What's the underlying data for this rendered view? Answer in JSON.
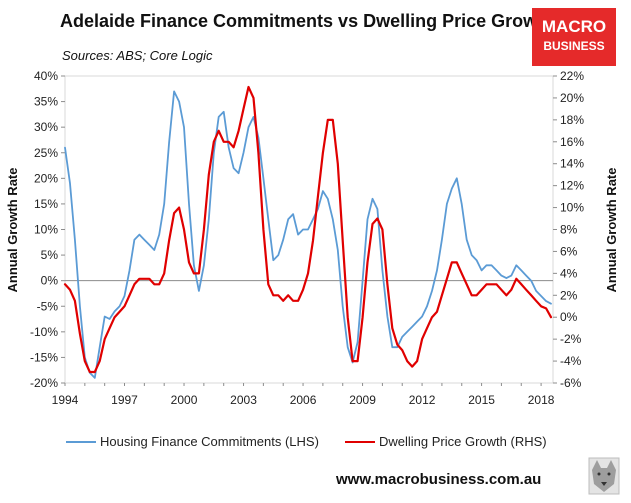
{
  "chart_data": {
    "type": "line",
    "title": "Adelaide Finance Commitments vs Dwelling Price Growth",
    "subtitle": "Sources: ABS; Core Logic",
    "ylabel_left": "Annual Growth Rate",
    "ylabel_right": "Annual Growth Rate",
    "xlim": [
      1994,
      2018.6
    ],
    "ylim_left": [
      -20,
      40
    ],
    "ylim_right": [
      -6,
      22
    ],
    "x_ticks": [
      "1994",
      "1997",
      "2000",
      "2003",
      "2006",
      "2009",
      "2012",
      "2015",
      "2018"
    ],
    "y_left_ticks": [
      "-20%",
      "-15%",
      "-10%",
      "-5%",
      "0%",
      "5%",
      "10%",
      "15%",
      "20%",
      "25%",
      "30%",
      "35%",
      "40%"
    ],
    "y_right_ticks": [
      "-6%",
      "-4%",
      "-2%",
      "0%",
      "2%",
      "4%",
      "6%",
      "8%",
      "10%",
      "12%",
      "14%",
      "16%",
      "18%",
      "20%",
      "22%"
    ],
    "series": [
      {
        "name": "Housing Finance Commitments (LHS)",
        "axis": "left",
        "color": "#5b9bd5",
        "points": [
          [
            1994.0,
            26
          ],
          [
            1994.25,
            19
          ],
          [
            1994.5,
            8
          ],
          [
            1994.75,
            -5
          ],
          [
            1995.0,
            -15
          ],
          [
            1995.25,
            -18
          ],
          [
            1995.5,
            -19
          ],
          [
            1995.75,
            -13
          ],
          [
            1996.0,
            -7
          ],
          [
            1996.25,
            -7.5
          ],
          [
            1996.5,
            -6
          ],
          [
            1996.75,
            -5
          ],
          [
            1997.0,
            -3
          ],
          [
            1997.25,
            2
          ],
          [
            1997.5,
            8
          ],
          [
            1997.75,
            9
          ],
          [
            1998.0,
            8
          ],
          [
            1998.25,
            7
          ],
          [
            1998.5,
            6
          ],
          [
            1998.75,
            9
          ],
          [
            1999.0,
            15
          ],
          [
            1999.25,
            27
          ],
          [
            1999.5,
            37
          ],
          [
            1999.75,
            35
          ],
          [
            2000.0,
            30
          ],
          [
            2000.25,
            15
          ],
          [
            2000.5,
            3
          ],
          [
            2000.75,
            -2
          ],
          [
            2001.0,
            3
          ],
          [
            2001.25,
            12
          ],
          [
            2001.5,
            25
          ],
          [
            2001.75,
            32
          ],
          [
            2002.0,
            33
          ],
          [
            2002.25,
            26
          ],
          [
            2002.5,
            22
          ],
          [
            2002.75,
            21
          ],
          [
            2003.0,
            25
          ],
          [
            2003.25,
            30
          ],
          [
            2003.5,
            32
          ],
          [
            2003.75,
            28
          ],
          [
            2004.0,
            20
          ],
          [
            2004.25,
            12
          ],
          [
            2004.5,
            4
          ],
          [
            2004.75,
            5
          ],
          [
            2005.0,
            8
          ],
          [
            2005.25,
            12
          ],
          [
            2005.5,
            13
          ],
          [
            2005.75,
            9
          ],
          [
            2006.0,
            10
          ],
          [
            2006.25,
            10
          ],
          [
            2006.5,
            12
          ],
          [
            2006.75,
            14
          ],
          [
            2007.0,
            17.5
          ],
          [
            2007.25,
            16
          ],
          [
            2007.5,
            12
          ],
          [
            2007.75,
            6
          ],
          [
            2008.0,
            -5
          ],
          [
            2008.25,
            -13
          ],
          [
            2008.5,
            -16
          ],
          [
            2008.75,
            -12
          ],
          [
            2009.0,
            0
          ],
          [
            2009.25,
            12
          ],
          [
            2009.5,
            16
          ],
          [
            2009.75,
            14
          ],
          [
            2010.0,
            2
          ],
          [
            2010.25,
            -7
          ],
          [
            2010.5,
            -13
          ],
          [
            2010.75,
            -13
          ],
          [
            2011.0,
            -11
          ],
          [
            2011.25,
            -10
          ],
          [
            2011.5,
            -9
          ],
          [
            2011.75,
            -8
          ],
          [
            2012.0,
            -7
          ],
          [
            2012.25,
            -5
          ],
          [
            2012.5,
            -2
          ],
          [
            2012.75,
            2
          ],
          [
            2013.0,
            8
          ],
          [
            2013.25,
            15
          ],
          [
            2013.5,
            18
          ],
          [
            2013.75,
            20
          ],
          [
            2014.0,
            15
          ],
          [
            2014.25,
            8
          ],
          [
            2014.5,
            5
          ],
          [
            2014.75,
            4
          ],
          [
            2015.0,
            2
          ],
          [
            2015.25,
            3
          ],
          [
            2015.5,
            3
          ],
          [
            2015.75,
            2
          ],
          [
            2016.0,
            1
          ],
          [
            2016.25,
            0.5
          ],
          [
            2016.5,
            1
          ],
          [
            2016.75,
            3
          ],
          [
            2017.0,
            2
          ],
          [
            2017.25,
            1
          ],
          [
            2017.5,
            0
          ],
          [
            2017.75,
            -2
          ],
          [
            2018.0,
            -3
          ],
          [
            2018.25,
            -4
          ],
          [
            2018.5,
            -4.5
          ]
        ]
      },
      {
        "name": "Dwelling Price Growth (RHS)",
        "axis": "right",
        "color": "#e00000",
        "points": [
          [
            1994.0,
            3
          ],
          [
            1994.25,
            2.5
          ],
          [
            1994.5,
            1.5
          ],
          [
            1994.75,
            -1.5
          ],
          [
            1995.0,
            -4
          ],
          [
            1995.25,
            -5
          ],
          [
            1995.5,
            -5
          ],
          [
            1995.75,
            -4
          ],
          [
            1996.0,
            -2
          ],
          [
            1996.25,
            -1
          ],
          [
            1996.5,
            0
          ],
          [
            1996.75,
            0.5
          ],
          [
            1997.0,
            1
          ],
          [
            1997.25,
            2
          ],
          [
            1997.5,
            3
          ],
          [
            1997.75,
            3.5
          ],
          [
            1998.0,
            3.5
          ],
          [
            1998.25,
            3.5
          ],
          [
            1998.5,
            3
          ],
          [
            1998.75,
            3
          ],
          [
            1999.0,
            4
          ],
          [
            1999.25,
            7
          ],
          [
            1999.5,
            9.5
          ],
          [
            1999.75,
            10
          ],
          [
            2000.0,
            8
          ],
          [
            2000.25,
            5
          ],
          [
            2000.5,
            4
          ],
          [
            2000.75,
            4
          ],
          [
            2001.0,
            8
          ],
          [
            2001.25,
            13
          ],
          [
            2001.5,
            16
          ],
          [
            2001.75,
            17
          ],
          [
            2002.0,
            16
          ],
          [
            2002.25,
            16
          ],
          [
            2002.5,
            15.5
          ],
          [
            2002.75,
            17
          ],
          [
            2003.0,
            19
          ],
          [
            2003.25,
            21
          ],
          [
            2003.5,
            20
          ],
          [
            2003.75,
            15
          ],
          [
            2004.0,
            8
          ],
          [
            2004.25,
            3
          ],
          [
            2004.5,
            2
          ],
          [
            2004.75,
            2
          ],
          [
            2005.0,
            1.5
          ],
          [
            2005.25,
            2
          ],
          [
            2005.5,
            1.5
          ],
          [
            2005.75,
            1.5
          ],
          [
            2006.0,
            2.5
          ],
          [
            2006.25,
            4
          ],
          [
            2006.5,
            7
          ],
          [
            2006.75,
            11
          ],
          [
            2007.0,
            15
          ],
          [
            2007.25,
            18
          ],
          [
            2007.5,
            18
          ],
          [
            2007.75,
            14
          ],
          [
            2008.0,
            7
          ],
          [
            2008.25,
            0
          ],
          [
            2008.5,
            -4
          ],
          [
            2008.75,
            -4
          ],
          [
            2009.0,
            0
          ],
          [
            2009.25,
            5
          ],
          [
            2009.5,
            8.5
          ],
          [
            2009.75,
            9
          ],
          [
            2010.0,
            8
          ],
          [
            2010.25,
            3
          ],
          [
            2010.5,
            -1
          ],
          [
            2010.75,
            -2.5
          ],
          [
            2011.0,
            -3
          ],
          [
            2011.25,
            -4
          ],
          [
            2011.5,
            -4.5
          ],
          [
            2011.75,
            -4
          ],
          [
            2012.0,
            -2
          ],
          [
            2012.25,
            -1
          ],
          [
            2012.5,
            0
          ],
          [
            2012.75,
            0.5
          ],
          [
            2013.0,
            2
          ],
          [
            2013.25,
            3.5
          ],
          [
            2013.5,
            5
          ],
          [
            2013.75,
            5
          ],
          [
            2014.0,
            4
          ],
          [
            2014.25,
            3
          ],
          [
            2014.5,
            2
          ],
          [
            2014.75,
            2
          ],
          [
            2015.0,
            2.5
          ],
          [
            2015.25,
            3
          ],
          [
            2015.5,
            3
          ],
          [
            2015.75,
            3
          ],
          [
            2016.0,
            2.5
          ],
          [
            2016.25,
            2
          ],
          [
            2016.5,
            2.5
          ],
          [
            2016.75,
            3.5
          ],
          [
            2017.0,
            3
          ],
          [
            2017.25,
            2.5
          ],
          [
            2017.5,
            2
          ],
          [
            2017.75,
            1.5
          ],
          [
            2018.0,
            1
          ],
          [
            2018.25,
            0.8
          ],
          [
            2018.5,
            0
          ]
        ]
      }
    ],
    "legend_position": "bottom"
  },
  "logo": {
    "line1": "MACRO",
    "line2": "BUSINESS",
    "color": "#e52a2a"
  },
  "footer": {
    "url": "www.macrobusiness.com.au"
  }
}
